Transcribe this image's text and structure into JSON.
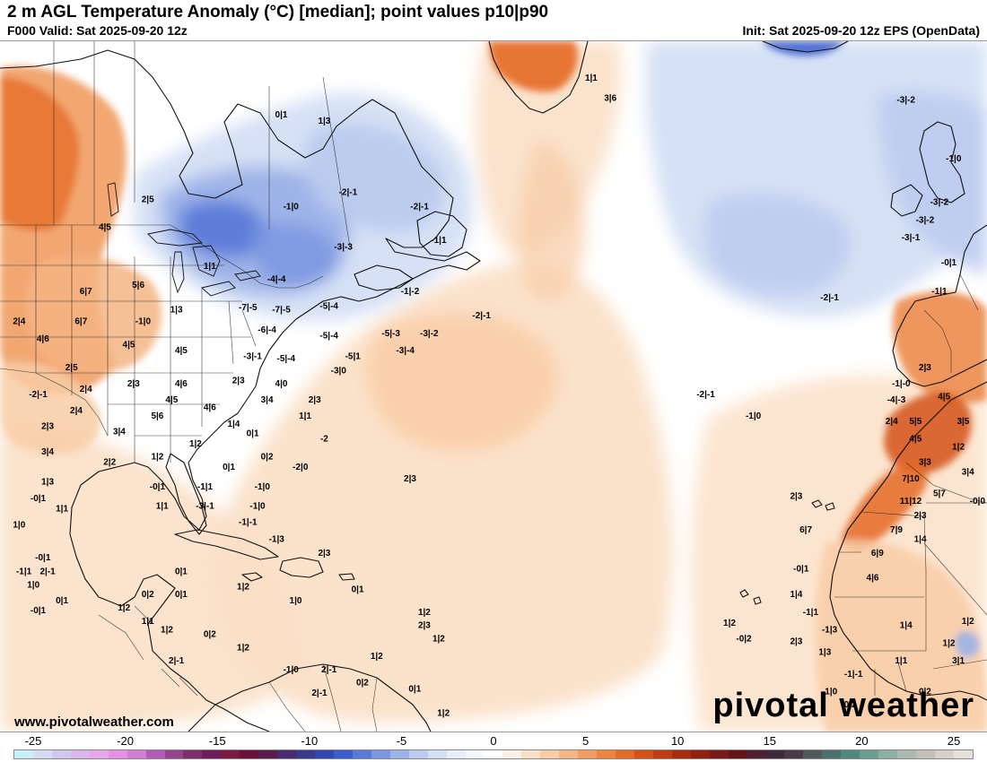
{
  "header": {
    "title": "2 m AGL Temperature Anomaly (°C) [median]; point values p10|p90",
    "valid": "F000 Valid: Sat 2025-09-20 12z",
    "init": "Init: Sat 2025-09-20 12z EPS (OpenData)"
  },
  "footer": {
    "website": "www.pivotalweather.com",
    "brand": "pivotal weather"
  },
  "colorbar": {
    "ticks": [
      "-25",
      "-20",
      "-15",
      "-10",
      "-5",
      "0",
      "5",
      "10",
      "15",
      "20",
      "25"
    ],
    "colors": [
      "#c8f0fa",
      "#d6dcf4",
      "#d0c8f0",
      "#dcb4ee",
      "#e6a8ea",
      "#ea90e4",
      "#d27cd4",
      "#b45ab6",
      "#96428c",
      "#7e2e6e",
      "#6c1e5c",
      "#7a1a40",
      "#6c1038",
      "#5a1a4e",
      "#4a2a6e",
      "#3a3a8c",
      "#3048b0",
      "#3a5ccc",
      "#5a7ad8",
      "#7a96e0",
      "#9cb2e8",
      "#bccbef",
      "#d4dff4",
      "#e8eef8",
      "#f4f7fb",
      "#ffffff",
      "#fdf1e6",
      "#fbe0c8",
      "#f8cca6",
      "#f5b584",
      "#f19d62",
      "#ec8442",
      "#e46a26",
      "#d45218",
      "#c23a10",
      "#aa2a0c",
      "#922010",
      "#7c1818",
      "#641414",
      "#502030",
      "#3e2a3c",
      "#4a3a48",
      "#505a5a",
      "#4a7070",
      "#508880",
      "#6a9e90",
      "#8cb0a4",
      "#acb8b0",
      "#c4c0b8",
      "#d8d0c8",
      "#e6e0da"
    ]
  },
  "map": {
    "point_values": [
      {
        "label": "2|5",
        "lon": -91.5,
        "lat": 52.0
      },
      {
        "label": "0|1",
        "lon": -77.5,
        "lat": 57.6
      },
      {
        "label": "1|3",
        "lon": -73.0,
        "lat": 57.2
      },
      {
        "label": "4|5",
        "lon": -96.0,
        "lat": 50.0
      },
      {
        "label": "1|1",
        "lon": -85.0,
        "lat": 47.0
      },
      {
        "label": "-1|0",
        "lon": -76.5,
        "lat": 51.5
      },
      {
        "label": "-2|-1",
        "lon": -70.5,
        "lat": 52.5
      },
      {
        "label": "-2|-1",
        "lon": -63.0,
        "lat": 51.5
      },
      {
        "label": "-3|-3",
        "lon": -71.0,
        "lat": 48.5
      },
      {
        "label": "-1|1",
        "lon": -61.0,
        "lat": 49.0
      },
      {
        "label": "-4|-4",
        "lon": -78.0,
        "lat": 46.0
      },
      {
        "label": "-1|-2",
        "lon": -64.0,
        "lat": 45.0
      },
      {
        "label": "-7|-5",
        "lon": -81.0,
        "lat": 43.7
      },
      {
        "label": "-7|-5",
        "lon": -77.5,
        "lat": 43.5
      },
      {
        "label": "-5|-4",
        "lon": -72.5,
        "lat": 43.8
      },
      {
        "label": "-6|-4",
        "lon": -79.0,
        "lat": 41.8
      },
      {
        "label": "-5|-4",
        "lon": -72.5,
        "lat": 41.3
      },
      {
        "label": "-5|-3",
        "lon": -66.0,
        "lat": 41.5
      },
      {
        "label": "-3|-2",
        "lon": -62.0,
        "lat": 41.5
      },
      {
        "label": "-2|-1",
        "lon": -56.5,
        "lat": 43.0
      },
      {
        "label": "-3|-4",
        "lon": -64.5,
        "lat": 40.0
      },
      {
        "label": "-5|-4",
        "lon": -77.0,
        "lat": 39.3
      },
      {
        "label": "-3|-1",
        "lon": -80.5,
        "lat": 39.5
      },
      {
        "label": "-5|1",
        "lon": -70.0,
        "lat": 39.5
      },
      {
        "label": "-3|0",
        "lon": -71.5,
        "lat": 38.2
      },
      {
        "label": "6|7",
        "lon": -98.0,
        "lat": 45.0
      },
      {
        "label": "5|6",
        "lon": -92.5,
        "lat": 45.5
      },
      {
        "label": "1|3",
        "lon": -88.5,
        "lat": 43.5
      },
      {
        "label": "2|4",
        "lon": -105.0,
        "lat": 42.5
      },
      {
        "label": "6|7",
        "lon": -98.5,
        "lat": 42.5
      },
      {
        "label": "-1|0",
        "lon": -92.0,
        "lat": 42.5
      },
      {
        "label": "4|6",
        "lon": -102.5,
        "lat": 41.0
      },
      {
        "label": "4|5",
        "lon": -93.5,
        "lat": 40.5
      },
      {
        "label": "4|5",
        "lon": -88.0,
        "lat": 40.0
      },
      {
        "label": "2|5",
        "lon": -99.5,
        "lat": 38.5
      },
      {
        "label": "2|3",
        "lon": -93.0,
        "lat": 37.0
      },
      {
        "label": "4|6",
        "lon": -88.0,
        "lat": 37.0
      },
      {
        "label": "2|3",
        "lon": -82.0,
        "lat": 37.3
      },
      {
        "label": "4|0",
        "lon": -77.5,
        "lat": 37.0
      },
      {
        "label": "2|4",
        "lon": -98.0,
        "lat": 36.5
      },
      {
        "label": "-2|-1",
        "lon": -103.0,
        "lat": 36.0
      },
      {
        "label": "4|5",
        "lon": -89.0,
        "lat": 35.5
      },
      {
        "label": "3|4",
        "lon": -79.0,
        "lat": 35.5
      },
      {
        "label": "2|4",
        "lon": -99.0,
        "lat": 34.5
      },
      {
        "label": "5|6",
        "lon": -90.5,
        "lat": 34.0
      },
      {
        "label": "4|6",
        "lon": -85.0,
        "lat": 34.8
      },
      {
        "label": "2|3",
        "lon": -74.0,
        "lat": 35.5
      },
      {
        "label": "1|4",
        "lon": -82.5,
        "lat": 33.2
      },
      {
        "label": "1|1",
        "lon": -75.0,
        "lat": 34.0
      },
      {
        "label": "2|3",
        "lon": -102.0,
        "lat": 33.0
      },
      {
        "label": "3|4",
        "lon": -94.5,
        "lat": 32.5
      },
      {
        "label": "0|1",
        "lon": -80.5,
        "lat": 32.3
      },
      {
        "label": "-2",
        "lon": -73.0,
        "lat": 31.8
      },
      {
        "label": "1|2",
        "lon": -86.5,
        "lat": 31.3
      },
      {
        "label": "3|4",
        "lon": -102.0,
        "lat": 30.5
      },
      {
        "label": "1|2",
        "lon": -90.5,
        "lat": 30.0
      },
      {
        "label": "0|2",
        "lon": -79.0,
        "lat": 30.0
      },
      {
        "label": "2|2",
        "lon": -95.5,
        "lat": 29.5
      },
      {
        "label": "0|1",
        "lon": -83.0,
        "lat": 29.0
      },
      {
        "label": "-2|0",
        "lon": -75.5,
        "lat": 29.0
      },
      {
        "label": "1|3",
        "lon": -102.0,
        "lat": 27.5
      },
      {
        "label": "-0|1",
        "lon": -90.5,
        "lat": 27.0
      },
      {
        "label": "-1|1",
        "lon": -85.5,
        "lat": 27.0
      },
      {
        "label": "-1|0",
        "lon": -79.5,
        "lat": 27.0
      },
      {
        "label": "-0|1",
        "lon": -103.0,
        "lat": 25.8
      },
      {
        "label": "1|1",
        "lon": -100.5,
        "lat": 24.7
      },
      {
        "label": "1|1",
        "lon": -90.0,
        "lat": 25.0
      },
      {
        "label": "-3|-1",
        "lon": -85.5,
        "lat": 25.0
      },
      {
        "label": "-1|0",
        "lon": -80.0,
        "lat": 25.0
      },
      {
        "label": "-1|-1",
        "lon": -81.0,
        "lat": 23.3
      },
      {
        "label": "1|0",
        "lon": -105.0,
        "lat": 23.0
      },
      {
        "label": "-1|3",
        "lon": -78.0,
        "lat": 21.5
      },
      {
        "label": "2|3",
        "lon": -73.0,
        "lat": 20.0
      },
      {
        "label": "-0|1",
        "lon": -102.5,
        "lat": 19.5
      },
      {
        "label": "-1|1",
        "lon": -104.5,
        "lat": 18.0
      },
      {
        "label": "2|-1",
        "lon": -102.0,
        "lat": 18.0
      },
      {
        "label": "0|1",
        "lon": -88.0,
        "lat": 18.0
      },
      {
        "label": "1|0",
        "lon": -103.5,
        "lat": 16.5
      },
      {
        "label": "1|2",
        "lon": -81.5,
        "lat": 16.3
      },
      {
        "label": "0|2",
        "lon": -91.5,
        "lat": 15.5
      },
      {
        "label": "0|1",
        "lon": -88.0,
        "lat": 15.5
      },
      {
        "label": "0|1",
        "lon": -69.5,
        "lat": 16.0
      },
      {
        "label": "0|1",
        "lon": -100.5,
        "lat": 14.8
      },
      {
        "label": "1|0",
        "lon": -76.0,
        "lat": 14.8
      },
      {
        "label": "1|2",
        "lon": -94.0,
        "lat": 14.0
      },
      {
        "label": "-0|1",
        "lon": -103.0,
        "lat": 13.7
      },
      {
        "label": "1|1",
        "lon": -91.5,
        "lat": 12.5
      },
      {
        "label": "1|2",
        "lon": -89.5,
        "lat": 11.5
      },
      {
        "label": "1|2",
        "lon": -62.5,
        "lat": 13.5
      },
      {
        "label": "2|3",
        "lon": -62.5,
        "lat": 12.0
      },
      {
        "label": "0|2",
        "lon": -85.0,
        "lat": 11.0
      },
      {
        "label": "1|2",
        "lon": -61.0,
        "lat": 10.5
      },
      {
        "label": "1|2",
        "lon": -81.5,
        "lat": 9.5
      },
      {
        "label": "1|2",
        "lon": -67.5,
        "lat": 8.5
      },
      {
        "label": "2|-1",
        "lon": -88.5,
        "lat": 8.0
      },
      {
        "label": "-1|0",
        "lon": -76.5,
        "lat": 7.0
      },
      {
        "label": "2|-1",
        "lon": -72.5,
        "lat": 7.0
      },
      {
        "label": "0|2",
        "lon": -69.0,
        "lat": 5.5
      },
      {
        "label": "0|1",
        "lon": -63.5,
        "lat": 4.8
      },
      {
        "label": "2|-1",
        "lon": -73.5,
        "lat": 4.3
      },
      {
        "label": "1|2",
        "lon": -60.5,
        "lat": 2.0
      },
      {
        "label": "2|3",
        "lon": -64.0,
        "lat": 27.8
      },
      {
        "label": "1|1",
        "lon": -45.0,
        "lat": 59.8
      },
      {
        "label": "3|6",
        "lon": -43.0,
        "lat": 58.6
      },
      {
        "label": "-3|-2",
        "lon": -12.0,
        "lat": 58.5
      },
      {
        "label": "-1|0",
        "lon": -7.0,
        "lat": 54.8
      },
      {
        "label": "-3|-2",
        "lon": -8.5,
        "lat": 51.8
      },
      {
        "label": "-3|-2",
        "lon": -10.0,
        "lat": 50.5
      },
      {
        "label": "-3|-1",
        "lon": -11.5,
        "lat": 49.2
      },
      {
        "label": "-0|1",
        "lon": -7.5,
        "lat": 47.3
      },
      {
        "label": "-1|1",
        "lon": -8.5,
        "lat": 45.0
      },
      {
        "label": "-2|-1",
        "lon": -20.0,
        "lat": 44.5
      },
      {
        "label": "-2|-1",
        "lon": -33.0,
        "lat": 36.0
      },
      {
        "label": "-1|0",
        "lon": -28.0,
        "lat": 34.0
      },
      {
        "label": "2|3",
        "lon": -10.0,
        "lat": 38.5
      },
      {
        "label": "-1|-0",
        "lon": -12.5,
        "lat": 37.0
      },
      {
        "label": "-4|-3",
        "lon": -13.0,
        "lat": 35.5
      },
      {
        "label": "4|5",
        "lon": -8.0,
        "lat": 35.8
      },
      {
        "label": "2|4",
        "lon": -13.5,
        "lat": 33.5
      },
      {
        "label": "5|5",
        "lon": -11.0,
        "lat": 33.5
      },
      {
        "label": "3|5",
        "lon": -6.0,
        "lat": 33.5
      },
      {
        "label": "4|5",
        "lon": -11.0,
        "lat": 31.8
      },
      {
        "label": "1|2",
        "lon": -6.5,
        "lat": 31.0
      },
      {
        "label": "3|3",
        "lon": -10.0,
        "lat": 29.5
      },
      {
        "label": "3|4",
        "lon": -5.5,
        "lat": 28.5
      },
      {
        "label": "7|10",
        "lon": -11.5,
        "lat": 27.8
      },
      {
        "label": "5|7",
        "lon": -8.5,
        "lat": 26.3
      },
      {
        "label": "2|3",
        "lon": -23.5,
        "lat": 26.0
      },
      {
        "label": "11|12",
        "lon": -11.5,
        "lat": 25.5
      },
      {
        "label": "-0|0",
        "lon": -4.5,
        "lat": 25.5
      },
      {
        "label": "2|3",
        "lon": -10.5,
        "lat": 24.0
      },
      {
        "label": "7|9",
        "lon": -13.0,
        "lat": 22.5
      },
      {
        "label": "6|7",
        "lon": -22.5,
        "lat": 22.5
      },
      {
        "label": "1|4",
        "lon": -10.5,
        "lat": 21.5
      },
      {
        "label": "6|9",
        "lon": -15.0,
        "lat": 20.0
      },
      {
        "label": "-0|1",
        "lon": -23.0,
        "lat": 18.3
      },
      {
        "label": "4|6",
        "lon": -15.5,
        "lat": 17.3
      },
      {
        "label": "1|4",
        "lon": -23.5,
        "lat": 15.5
      },
      {
        "label": "-1|1",
        "lon": -22.0,
        "lat": 13.5
      },
      {
        "label": "1|2",
        "lon": -30.5,
        "lat": 12.3
      },
      {
        "label": "1|4",
        "lon": -12.0,
        "lat": 12.0
      },
      {
        "label": "1|2",
        "lon": -5.5,
        "lat": 12.5
      },
      {
        "label": "-1|3",
        "lon": -20.0,
        "lat": 11.5
      },
      {
        "label": "-0|2",
        "lon": -29.0,
        "lat": 10.5
      },
      {
        "label": "2|3",
        "lon": -23.5,
        "lat": 10.2
      },
      {
        "label": "1|2",
        "lon": -7.5,
        "lat": 10.0
      },
      {
        "label": "1|3",
        "lon": -20.5,
        "lat": 9.0
      },
      {
        "label": "1|1",
        "lon": -12.5,
        "lat": 8.0
      },
      {
        "label": "3|1",
        "lon": -6.5,
        "lat": 8.0
      },
      {
        "label": "-1|-1",
        "lon": -17.5,
        "lat": 6.5
      },
      {
        "label": "-1|0",
        "lon": -20.0,
        "lat": 4.5
      },
      {
        "label": "0|2",
        "lon": -10.0,
        "lat": 4.5
      },
      {
        "label": "-0|2",
        "lon": -18.0,
        "lat": 3.0
      }
    ]
  }
}
